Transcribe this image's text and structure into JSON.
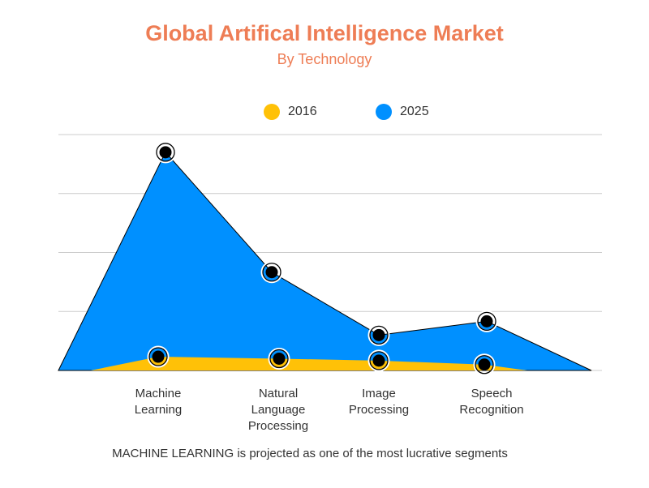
{
  "header": {
    "title": "Global Artifical Intelligence Market",
    "subtitle": "By Technology"
  },
  "footnote": "MACHINE LEARNING is projected as one of the most lucrative segments",
  "colors": {
    "title": "#ee7d55",
    "series_2016": "#ffc107",
    "series_2025": "#0090ff",
    "grid": "#cccccc",
    "marker": "#000000"
  },
  "chart_data": {
    "type": "area",
    "title": "Global Artifical Intelligence Market",
    "subtitle": "By Technology",
    "categories": [
      "Machine\nLearning",
      "Natural\nLanguage\nProcessing",
      "Image\nProcessing",
      "Speech\nRecognition"
    ],
    "series": [
      {
        "name": "2016",
        "values": [
          0.7,
          0.6,
          0.5,
          0.3
        ]
      },
      {
        "name": "2025",
        "values": [
          11.1,
          5.0,
          1.8,
          2.5
        ]
      }
    ],
    "ylim": [
      0,
      12
    ],
    "grid": true,
    "legend_position": "top-center",
    "xlabel": "",
    "ylabel": ""
  }
}
